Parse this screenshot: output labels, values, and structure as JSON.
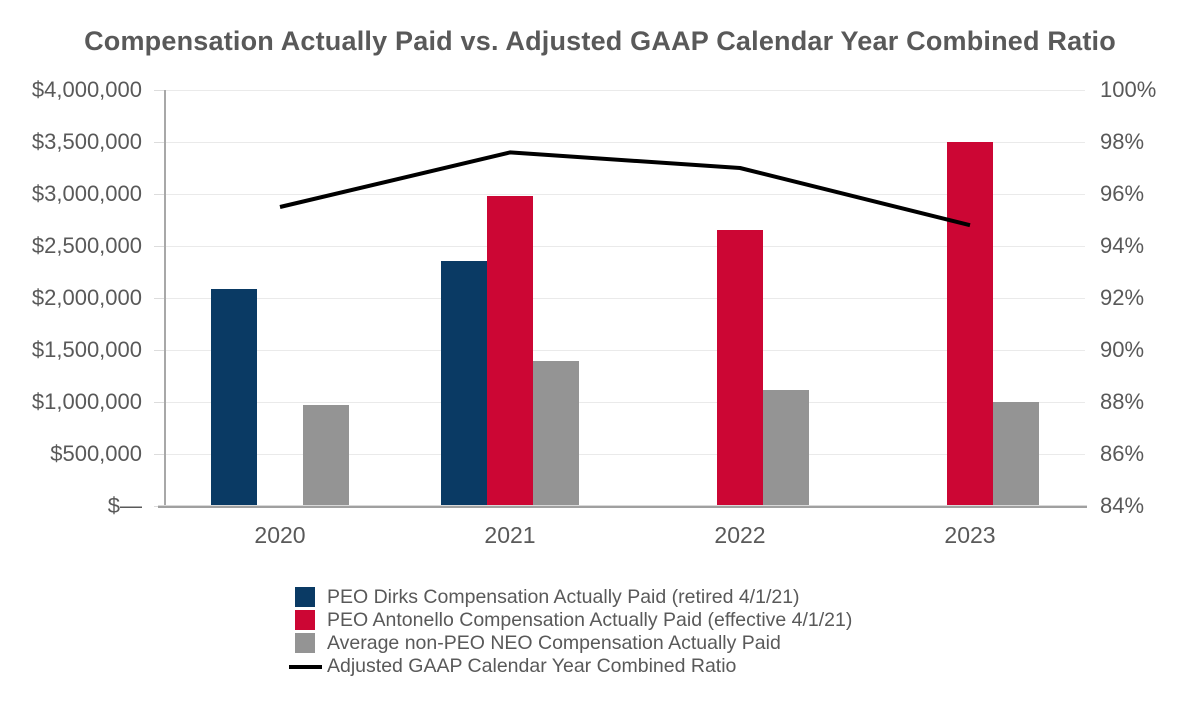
{
  "title": "Compensation Actually Paid vs. Adjusted GAAP Calendar Year Combined Ratio",
  "colors": {
    "text": "#595959",
    "grid": "#eaeaea",
    "axis_line": "#a0a0a0",
    "background": "#ffffff",
    "peo_dirks_blue": "#0A3A64",
    "peo_antonello_red": "#CC0634",
    "avg_neo_gray": "#949494",
    "ratio_line_black": "#000000"
  },
  "chart_data": {
    "type": "combo (grouped bar + line, dual axis)",
    "categories": [
      "2020",
      "2021",
      "2022",
      "2023"
    ],
    "series": [
      {
        "name": "PEO Dirks Compensation Actually Paid (retired 4/1/21)",
        "type": "bar",
        "axis": "left",
        "color": "#0A3A64",
        "values": [
          2090000,
          2360000,
          null,
          null
        ]
      },
      {
        "name": "PEO Antonello Compensation Actually Paid (effective 4/1/21)",
        "type": "bar",
        "axis": "left",
        "color": "#CC0634",
        "values": [
          null,
          2980000,
          2650000,
          3500000
        ]
      },
      {
        "name": "Average non-PEO NEO Compensation Actually Paid",
        "type": "bar",
        "axis": "left",
        "color": "#949494",
        "values": [
          970000,
          1390000,
          1120000,
          1000000
        ]
      },
      {
        "name": "Adjusted GAAP Calendar Year Combined Ratio",
        "type": "line",
        "axis": "right",
        "color": "#000000",
        "values": [
          95.5,
          97.6,
          97.0,
          94.8
        ]
      }
    ],
    "left_axis": {
      "min": 0,
      "max": 4000000,
      "step": 500000,
      "tick_labels": [
        "$4,000,000",
        "$3,500,000",
        "$3,000,000",
        "$2,500,000",
        "$2,000,000",
        "$1,500,000",
        "$1,000,000",
        "$500,000",
        "$—"
      ]
    },
    "right_axis": {
      "min": 84,
      "max": 100,
      "step": 2,
      "tick_labels": [
        "100%",
        "98%",
        "96%",
        "94%",
        "92%",
        "90%",
        "88%",
        "86%",
        "84%"
      ]
    },
    "grid": true,
    "legend_position": "bottom"
  }
}
